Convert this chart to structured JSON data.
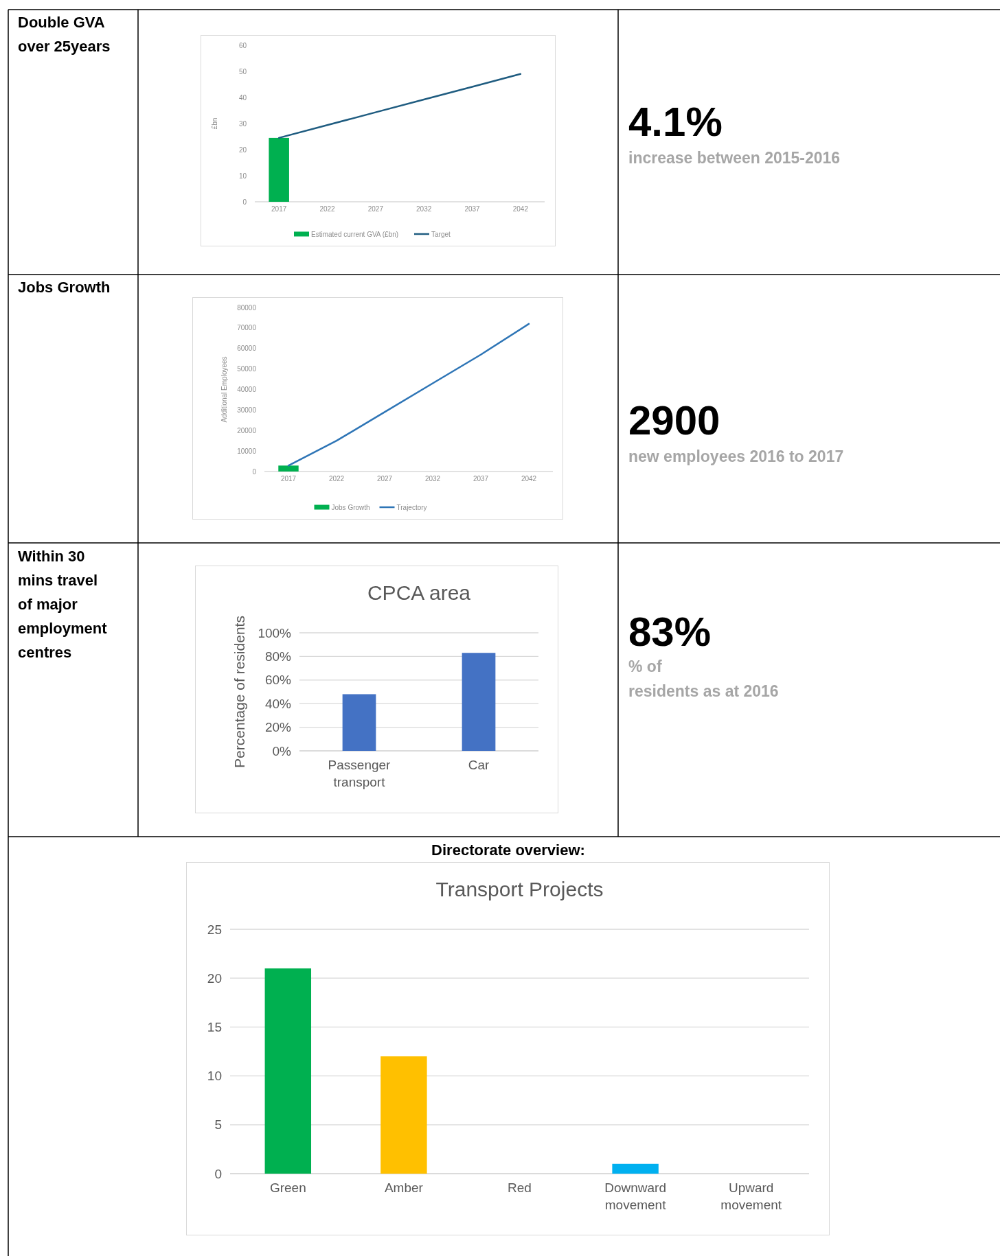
{
  "chart_data": [
    {
      "type": "other",
      "title": "Double GVA over 25years"
    },
    {
      "type": "bar",
      "categories": [
        "2017",
        "2022",
        "2027",
        "2032",
        "2037",
        "2042"
      ],
      "ylabel": "£bn",
      "ylim": [
        0,
        60
      ],
      "yticks": [
        0,
        10,
        20,
        30,
        40,
        50,
        60
      ],
      "legend": "bottom",
      "series": [
        {
          "name": "Estimated current GVA (£bn)",
          "type": "bar",
          "color": "#00b050",
          "values": [
            24.5,
            null,
            null,
            null,
            null,
            null
          ]
        },
        {
          "name": "Target",
          "type": "line",
          "color": "#1f5c80",
          "values": [
            24.5,
            29.4,
            34.3,
            39.2,
            44.1,
            49
          ]
        }
      ]
    },
    {
      "type": "other",
      "title": "4.1%",
      "annotations": [
        "increase between 2015-2016"
      ]
    },
    {
      "type": "other",
      "title": "Jobs Growth"
    },
    {
      "type": "bar",
      "categories": [
        "2017",
        "2022",
        "2027",
        "2032",
        "2037",
        "2042"
      ],
      "ylabel": "Additional Employees",
      "ylim": [
        0,
        80000
      ],
      "yticks": [
        0,
        10000,
        20000,
        30000,
        40000,
        50000,
        60000,
        70000,
        80000
      ],
      "legend": "bottom",
      "series": [
        {
          "name": "Jobs Growth",
          "type": "bar",
          "color": "#00b050",
          "values": [
            2900,
            null,
            null,
            null,
            null,
            null
          ]
        },
        {
          "name": "Trajectory",
          "type": "line",
          "color": "#2e75b6",
          "values": [
            2900,
            15000,
            29000,
            43000,
            57000,
            72000
          ]
        }
      ]
    },
    {
      "type": "other",
      "title": "2900",
      "annotations": [
        "new employees 2016 to 2017"
      ]
    },
    {
      "type": "other",
      "title": "Within 30 mins travel of major employment centres"
    },
    {
      "type": "bar",
      "title": "CPCA area",
      "categories": [
        "Passenger transport",
        "Car"
      ],
      "values": [
        48,
        83
      ],
      "color": "#4472c4",
      "ylabel": "Percentage of residents",
      "ylim": [
        0,
        100
      ],
      "yticks": [
        {
          "value": 0,
          "label": "0%"
        },
        {
          "value": 20,
          "label": "20%"
        },
        {
          "value": 40,
          "label": "40%"
        },
        {
          "value": 60,
          "label": "60%"
        },
        {
          "value": 80,
          "label": "80%"
        },
        {
          "value": 100,
          "label": "100%"
        }
      ],
      "grid": "y"
    },
    {
      "type": "other",
      "title": "83%",
      "annotations": [
        "% of",
        "residents as at 2016"
      ]
    },
    {
      "type": "other",
      "title": "Directorate overview:"
    },
    {
      "type": "bar",
      "title": "Transport Projects",
      "categories": [
        "Green",
        "Amber",
        "Red",
        "Downward movement",
        "Upward movement"
      ],
      "values": [
        21,
        12,
        0,
        1,
        0
      ],
      "colors": [
        "#00b050",
        "#ffc000",
        "#ff0000",
        "#00b0f0",
        "#70ad47"
      ],
      "ylim": [
        0,
        25
      ],
      "yticks": [
        0,
        5,
        10,
        15,
        20,
        25
      ],
      "grid": "y"
    }
  ]
}
